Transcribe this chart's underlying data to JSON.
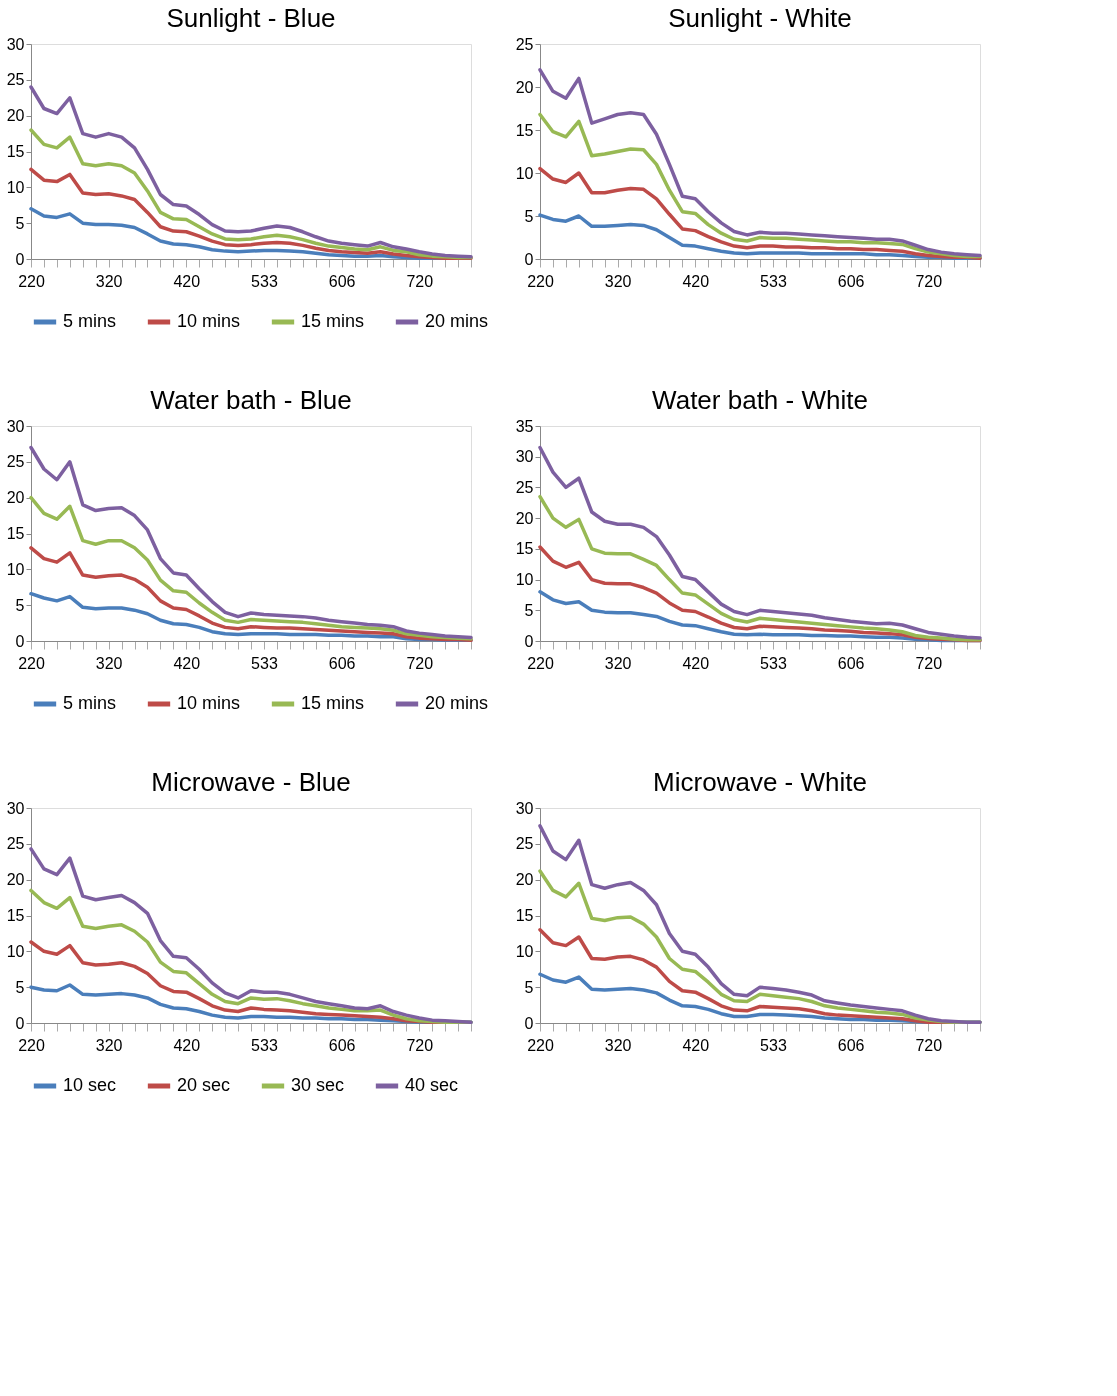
{
  "chart_data": [
    {
      "type": "line",
      "title": "Sunlight - Blue",
      "categories": [
        "220",
        null,
        null,
        null,
        null,
        null,
        "320",
        null,
        null,
        null,
        null,
        null,
        "420",
        null,
        null,
        null,
        null,
        null,
        "533",
        null,
        null,
        null,
        null,
        null,
        "606",
        null,
        null,
        null,
        null,
        null,
        "720",
        null,
        null,
        null,
        null
      ],
      "ylim": [
        0,
        30
      ],
      "yticks": [
        0,
        5,
        10,
        15,
        20,
        25,
        30
      ],
      "legend": "bottom",
      "grid": false,
      "marker": "none",
      "line_style": "solid",
      "series": [
        {
          "name": "5 mins",
          "color": "#4a7ebb",
          "values": [
            7,
            6,
            5.8,
            6.3,
            5,
            4.8,
            4.8,
            4.7,
            4.4,
            3.5,
            2.5,
            2.1,
            2,
            1.7,
            1.3,
            1.1,
            1,
            1.1,
            1.2,
            1.2,
            1.1,
            1.0,
            0.8,
            0.6,
            0.5,
            0.4,
            0.4,
            0.5,
            0.3,
            0.2,
            0.1,
            0.1,
            0.1,
            null,
            null
          ]
        },
        {
          "name": "10 mins",
          "color": "#be4b48",
          "values": [
            12.5,
            11,
            10.8,
            11.8,
            9.2,
            9,
            9.1,
            8.8,
            8.3,
            6.5,
            4.5,
            3.9,
            3.8,
            3.2,
            2.5,
            2,
            1.9,
            2,
            2.2,
            2.3,
            2.2,
            1.9,
            1.5,
            1.2,
            1.0,
            0.9,
            0.8,
            1.0,
            0.7,
            0.5,
            0.3,
            0.2,
            0.1,
            0.1,
            0.1
          ]
        },
        {
          "name": "15 mins",
          "color": "#98b954",
          "values": [
            18,
            16,
            15.5,
            17,
            13.3,
            13,
            13.3,
            13,
            12,
            9.5,
            6.5,
            5.6,
            5.5,
            4.5,
            3.5,
            2.8,
            2.7,
            2.8,
            3.1,
            3.3,
            3.1,
            2.7,
            2.2,
            1.8,
            1.6,
            1.4,
            1.3,
            1.7,
            1.2,
            1.0,
            0.6,
            0.4,
            0.3,
            0.2,
            0.2
          ]
        },
        {
          "name": "20 mins",
          "color": "#7d60a0",
          "values": [
            24,
            21,
            20.3,
            22.5,
            17.5,
            17,
            17.5,
            17,
            15.5,
            12.5,
            9,
            7.6,
            7.4,
            6.2,
            4.8,
            3.9,
            3.8,
            3.9,
            4.3,
            4.6,
            4.4,
            3.8,
            3.1,
            2.5,
            2.2,
            2.0,
            1.8,
            2.3,
            1.7,
            1.4,
            1.0,
            0.7,
            0.5,
            0.4,
            0.3
          ]
        }
      ]
    },
    {
      "type": "line",
      "title": "Sunlight - White",
      "categories": [
        "220",
        null,
        null,
        null,
        null,
        null,
        "320",
        null,
        null,
        null,
        null,
        null,
        "420",
        null,
        null,
        null,
        null,
        null,
        "533",
        null,
        null,
        null,
        null,
        null,
        "606",
        null,
        null,
        null,
        null,
        null,
        "720",
        null,
        null,
        null,
        null
      ],
      "ylim": [
        0,
        25
      ],
      "yticks": [
        0,
        5,
        10,
        15,
        20,
        25
      ],
      "legend": "bottom",
      "grid": false,
      "marker": "none",
      "line_style": "solid",
      "series": [
        {
          "name": "5 mins",
          "color": "#4a7ebb",
          "values": [
            5.1,
            4.6,
            4.4,
            5,
            3.8,
            3.8,
            3.9,
            4,
            3.9,
            3.4,
            2.5,
            1.6,
            1.5,
            1.2,
            0.9,
            0.7,
            0.6,
            0.7,
            0.7,
            0.7,
            0.7,
            0.6,
            0.6,
            0.6,
            0.6,
            0.6,
            0.5,
            0.5,
            0.4,
            0.3,
            0.2,
            0.2,
            0.1,
            0.1,
            0.1
          ]
        },
        {
          "name": "10 mins",
          "color": "#be4b48",
          "values": [
            10.5,
            9.3,
            8.9,
            10,
            7.7,
            7.7,
            8,
            8.2,
            8.1,
            7,
            5.2,
            3.5,
            3.3,
            2.6,
            2,
            1.5,
            1.3,
            1.5,
            1.5,
            1.4,
            1.4,
            1.3,
            1.3,
            1.2,
            1.2,
            1.1,
            1.1,
            1.0,
            0.9,
            0.6,
            0.4,
            0.3,
            0.2,
            0.2,
            0.1
          ]
        },
        {
          "name": "15 mins",
          "color": "#98b954",
          "values": [
            16.8,
            14.8,
            14.2,
            16,
            12,
            12.2,
            12.5,
            12.8,
            12.7,
            11,
            8,
            5.5,
            5.3,
            4,
            3,
            2.3,
            2.1,
            2.5,
            2.4,
            2.4,
            2.3,
            2.2,
            2.1,
            2.0,
            2.0,
            1.9,
            1.9,
            1.8,
            1.7,
            1.2,
            0.8,
            0.6,
            0.4,
            0.3,
            0.3
          ]
        },
        {
          "name": "20 mins",
          "color": "#7d60a0",
          "values": [
            22,
            19.5,
            18.7,
            21,
            15.8,
            16.3,
            16.8,
            17,
            16.8,
            14.5,
            11,
            7.3,
            7,
            5.5,
            4.2,
            3.2,
            2.8,
            3.1,
            3.0,
            3.0,
            2.9,
            2.8,
            2.7,
            2.6,
            2.5,
            2.4,
            2.3,
            2.3,
            2.1,
            1.6,
            1.1,
            0.8,
            0.6,
            0.5,
            0.4
          ]
        }
      ]
    },
    {
      "type": "line",
      "title": "Water bath - Blue",
      "categories": [
        "220",
        null,
        null,
        null,
        null,
        null,
        "320",
        null,
        null,
        null,
        null,
        null,
        "420",
        null,
        null,
        null,
        null,
        null,
        "533",
        null,
        null,
        null,
        null,
        null,
        "606",
        null,
        null,
        null,
        null,
        null,
        "720",
        null,
        null,
        null,
        null
      ],
      "ylim": [
        0,
        30
      ],
      "yticks": [
        0,
        5,
        10,
        15,
        20,
        25,
        30
      ],
      "legend": "bottom",
      "grid": false,
      "marker": "none",
      "line_style": "solid",
      "series": [
        {
          "name": "5 mins",
          "color": "#4a7ebb",
          "values": [
            6.6,
            6,
            5.6,
            6.2,
            4.7,
            4.5,
            4.6,
            4.6,
            4.3,
            3.8,
            2.9,
            2.4,
            2.3,
            1.9,
            1.3,
            1.0,
            0.9,
            1.0,
            1.0,
            1.0,
            0.9,
            0.9,
            0.9,
            0.8,
            0.8,
            0.7,
            0.7,
            0.6,
            0.6,
            0.3,
            0.2,
            0.2,
            0.1,
            0.1,
            0.1
          ]
        },
        {
          "name": "10 mins",
          "color": "#be4b48",
          "values": [
            13,
            11.5,
            11,
            12.3,
            9.2,
            8.9,
            9.1,
            9.2,
            8.6,
            7.5,
            5.6,
            4.6,
            4.4,
            3.5,
            2.5,
            1.9,
            1.7,
            2,
            1.9,
            1.8,
            1.8,
            1.7,
            1.6,
            1.5,
            1.4,
            1.3,
            1.2,
            1.1,
            1.0,
            0.6,
            0.4,
            0.3,
            0.2,
            0.2,
            0.1
          ]
        },
        {
          "name": "15 mins",
          "color": "#98b954",
          "values": [
            20,
            17.8,
            17,
            18.8,
            14,
            13.5,
            14,
            14,
            13,
            11.3,
            8.5,
            7,
            6.8,
            5.3,
            4,
            2.9,
            2.6,
            3,
            2.9,
            2.8,
            2.7,
            2.6,
            2.4,
            2.2,
            2.0,
            1.9,
            1.8,
            1.7,
            1.5,
            1.0,
            0.8,
            0.6,
            0.5,
            0.4,
            0.3
          ]
        },
        {
          "name": "20 mins",
          "color": "#7d60a0",
          "values": [
            27,
            24,
            22.5,
            25,
            19,
            18.2,
            18.5,
            18.6,
            17.5,
            15.5,
            11.5,
            9.5,
            9.2,
            7.3,
            5.5,
            4.0,
            3.4,
            3.9,
            3.7,
            3.6,
            3.5,
            3.4,
            3.2,
            2.9,
            2.7,
            2.5,
            2.3,
            2.2,
            2.0,
            1.4,
            1.1,
            0.9,
            0.7,
            0.6,
            0.5
          ]
        }
      ]
    },
    {
      "type": "line",
      "title": "Water bath - White",
      "categories": [
        "220",
        null,
        null,
        null,
        null,
        null,
        "320",
        null,
        null,
        null,
        null,
        null,
        "420",
        null,
        null,
        null,
        null,
        null,
        "533",
        null,
        null,
        null,
        null,
        null,
        "606",
        null,
        null,
        null,
        null,
        null,
        "720",
        null,
        null,
        null,
        null
      ],
      "ylim": [
        0,
        35
      ],
      "yticks": [
        0,
        5,
        10,
        15,
        20,
        25,
        30,
        35
      ],
      "legend": "bottom",
      "grid": false,
      "marker": "none",
      "line_style": "solid",
      "series": [
        {
          "name": "5 mins",
          "color": "#4a7ebb",
          "values": [
            8,
            6.7,
            6.1,
            6.4,
            5,
            4.7,
            4.6,
            4.6,
            4.3,
            4,
            3.2,
            2.6,
            2.5,
            2,
            1.5,
            1.1,
            1.0,
            1.1,
            1.0,
            1.0,
            1.0,
            0.9,
            0.9,
            0.8,
            0.8,
            0.7,
            0.6,
            0.6,
            0.5,
            0.3,
            0.2,
            0.1,
            0.1,
            0.1,
            0.1
          ]
        },
        {
          "name": "10 mins",
          "color": "#be4b48",
          "values": [
            15.3,
            13,
            12,
            12.8,
            10,
            9.4,
            9.3,
            9.3,
            8.7,
            7.8,
            6.2,
            5,
            4.8,
            3.9,
            2.9,
            2.2,
            2,
            2.4,
            2.3,
            2.2,
            2.1,
            2.0,
            1.8,
            1.7,
            1.6,
            1.4,
            1.3,
            1.2,
            1.0,
            0.6,
            0.4,
            0.3,
            0.2,
            0.1,
            0.1
          ]
        },
        {
          "name": "15 mins",
          "color": "#98b954",
          "values": [
            23.5,
            20,
            18.5,
            19.8,
            15,
            14.3,
            14.2,
            14.2,
            13.3,
            12.3,
            10,
            7.8,
            7.5,
            6,
            4.5,
            3.5,
            3.1,
            3.7,
            3.5,
            3.3,
            3.1,
            2.9,
            2.7,
            2.5,
            2.3,
            2.1,
            2.0,
            1.8,
            1.5,
            0.9,
            0.6,
            0.5,
            0.3,
            0.2,
            0.2
          ]
        },
        {
          "name": "20 mins",
          "color": "#7d60a0",
          "values": [
            31.5,
            27.5,
            25,
            26.5,
            21,
            19.5,
            19,
            19,
            18.5,
            17,
            14,
            10.5,
            10,
            8,
            6,
            4.8,
            4.3,
            5,
            4.8,
            4.6,
            4.4,
            4.2,
            3.8,
            3.5,
            3.2,
            3.0,
            2.8,
            2.9,
            2.6,
            2.0,
            1.4,
            1.1,
            0.8,
            0.6,
            0.5
          ]
        }
      ]
    },
    {
      "type": "line",
      "title": "Microwave - Blue",
      "categories": [
        "220",
        null,
        null,
        null,
        null,
        null,
        "320",
        null,
        null,
        null,
        null,
        null,
        "420",
        null,
        null,
        null,
        null,
        null,
        "533",
        null,
        null,
        null,
        null,
        null,
        "606",
        null,
        null,
        null,
        null,
        null,
        "720",
        null,
        null,
        null,
        null
      ],
      "ylim": [
        0,
        30
      ],
      "yticks": [
        0,
        5,
        10,
        15,
        20,
        25,
        30
      ],
      "legend": "bottom",
      "grid": false,
      "marker": "none",
      "line_style": "solid",
      "series": [
        {
          "name": "10 sec",
          "color": "#4a7ebb",
          "values": [
            5,
            4.6,
            4.5,
            5.3,
            4,
            3.9,
            4,
            4.1,
            3.9,
            3.5,
            2.6,
            2.1,
            2,
            1.6,
            1.1,
            0.8,
            0.7,
            0.9,
            0.9,
            0.8,
            0.8,
            0.7,
            0.7,
            0.6,
            0.6,
            0.5,
            0.5,
            0.4,
            0.3,
            0.2,
            0.1,
            0.1,
            0.1,
            0.1,
            0.1
          ]
        },
        {
          "name": "20 sec",
          "color": "#be4b48",
          "values": [
            11.3,
            10,
            9.6,
            10.8,
            8.4,
            8.1,
            8.2,
            8.4,
            7.9,
            6.9,
            5.2,
            4.4,
            4.3,
            3.4,
            2.4,
            1.8,
            1.6,
            2.1,
            1.9,
            1.8,
            1.7,
            1.5,
            1.3,
            1.2,
            1.1,
            1.0,
            0.9,
            0.8,
            0.6,
            0.3,
            0.2,
            0.1,
            0.1,
            null,
            null
          ]
        },
        {
          "name": "30 sec",
          "color": "#98b954",
          "values": [
            18.5,
            16.8,
            16,
            17.5,
            13.5,
            13.2,
            13.5,
            13.7,
            12.8,
            11.3,
            8.5,
            7.2,
            7,
            5.5,
            4,
            3,
            2.7,
            3.5,
            3.3,
            3.4,
            3.1,
            2.7,
            2.4,
            2.1,
            1.9,
            1.7,
            1.7,
            1.8,
            1.1,
            0.6,
            0.3,
            0.2,
            0.1,
            0.1,
            0.1
          ]
        },
        {
          "name": "40 sec",
          "color": "#7d60a0",
          "values": [
            24.3,
            21.5,
            20.7,
            23,
            17.7,
            17.2,
            17.5,
            17.8,
            16.8,
            15.3,
            11.5,
            9.3,
            9.1,
            7.5,
            5.6,
            4.2,
            3.5,
            4.5,
            4.3,
            4.3,
            4.0,
            3.5,
            3.0,
            2.7,
            2.4,
            2.1,
            2.0,
            2.4,
            1.6,
            1.1,
            0.7,
            0.4,
            0.3,
            0.2,
            0.1
          ]
        }
      ]
    },
    {
      "type": "line",
      "title": "Microwave - White",
      "categories": [
        "220",
        null,
        null,
        null,
        null,
        null,
        "320",
        null,
        null,
        null,
        null,
        null,
        "420",
        null,
        null,
        null,
        null,
        null,
        "533",
        null,
        null,
        null,
        null,
        null,
        "606",
        null,
        null,
        null,
        null,
        null,
        "720",
        null,
        null,
        null,
        null
      ],
      "ylim": [
        0,
        30
      ],
      "yticks": [
        0,
        5,
        10,
        15,
        20,
        25,
        30
      ],
      "legend": "bottom",
      "grid": false,
      "marker": "none",
      "line_style": "solid",
      "series": [
        {
          "name": "10 sec",
          "color": "#4a7ebb",
          "values": [
            6.8,
            6,
            5.7,
            6.4,
            4.7,
            4.6,
            4.7,
            4.8,
            4.6,
            4.2,
            3.2,
            2.4,
            2.3,
            1.9,
            1.3,
            0.9,
            0.9,
            1.2,
            1.2,
            1.1,
            1.0,
            0.9,
            0.7,
            0.6,
            0.5,
            0.5,
            0.4,
            0.4,
            0.3,
            0.2,
            0.1,
            0.1,
            0.1,
            0.1,
            0.1
          ]
        },
        {
          "name": "20 sec",
          "color": "#be4b48",
          "values": [
            13,
            11.2,
            10.8,
            12,
            9,
            8.9,
            9.2,
            9.3,
            8.8,
            7.8,
            5.8,
            4.5,
            4.3,
            3.4,
            2.4,
            1.8,
            1.7,
            2.3,
            2.2,
            2.1,
            2.0,
            1.7,
            1.3,
            1.1,
            1.0,
            0.9,
            0.8,
            0.7,
            0.6,
            0.3,
            0.1,
            0.1,
            0.1,
            null,
            null
          ]
        },
        {
          "name": "30 sec",
          "color": "#98b954",
          "values": [
            21.2,
            18.5,
            17.6,
            19.5,
            14.6,
            14.3,
            14.7,
            14.8,
            13.8,
            12,
            9,
            7.5,
            7.2,
            5.7,
            4,
            3.1,
            3,
            4,
            3.8,
            3.6,
            3.4,
            3.0,
            2.4,
            2.1,
            1.9,
            1.7,
            1.5,
            1.4,
            1.2,
            0.7,
            0.4,
            0.2,
            0.1,
            0.1,
            0.1
          ]
        },
        {
          "name": "40 sec",
          "color": "#7d60a0",
          "values": [
            27.5,
            24,
            22.8,
            25.5,
            19.3,
            18.8,
            19.3,
            19.6,
            18.5,
            16.5,
            12.5,
            10,
            9.6,
            7.8,
            5.5,
            4.0,
            3.8,
            5.0,
            4.8,
            4.6,
            4.3,
            3.9,
            3.1,
            2.8,
            2.5,
            2.3,
            2.1,
            1.9,
            1.7,
            1.1,
            0.6,
            0.3,
            0.2,
            0.1,
            0.1
          ]
        }
      ]
    }
  ]
}
